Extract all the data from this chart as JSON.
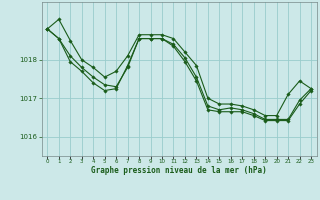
{
  "title": "Graphe pression niveau de la mer (hPa)",
  "background_color": "#cce8e8",
  "grid_color": "#99cccc",
  "line_color": "#1a5c1a",
  "marker_color": "#1a5c1a",
  "xlim": [
    -0.5,
    23.5
  ],
  "ylim": [
    1015.5,
    1019.5
  ],
  "yticks": [
    1016,
    1017,
    1018
  ],
  "xtick_labels": [
    "0",
    "1",
    "2",
    "3",
    "4",
    "5",
    "6",
    "7",
    "8",
    "9",
    "10",
    "11",
    "12",
    "13",
    "14",
    "15",
    "16",
    "17",
    "18",
    "19",
    "20",
    "21",
    "22",
    "23"
  ],
  "series": [
    [
      1018.8,
      1019.05,
      1018.5,
      1018.0,
      1017.8,
      1017.55,
      1017.7,
      1018.1,
      1018.65,
      1018.65,
      1018.65,
      1018.55,
      1018.2,
      1017.85,
      1017.0,
      1016.85,
      1016.85,
      1016.8,
      1016.7,
      1016.55,
      1016.55,
      1017.1,
      1017.45,
      1017.25
    ],
    [
      1018.8,
      1018.55,
      1018.1,
      1017.8,
      1017.55,
      1017.35,
      1017.3,
      1017.8,
      1018.55,
      1018.55,
      1018.55,
      1018.4,
      1018.05,
      1017.55,
      1016.8,
      1016.7,
      1016.75,
      1016.7,
      1016.6,
      1016.45,
      1016.45,
      1016.45,
      1016.95,
      1017.25
    ],
    [
      1018.8,
      1018.55,
      1017.95,
      1017.7,
      1017.4,
      1017.2,
      1017.25,
      1017.85,
      1018.55,
      1018.55,
      1018.55,
      1018.35,
      1017.95,
      1017.45,
      1016.7,
      1016.65,
      1016.65,
      1016.65,
      1016.55,
      1016.42,
      1016.42,
      1016.42,
      1016.85,
      1017.2
    ]
  ]
}
